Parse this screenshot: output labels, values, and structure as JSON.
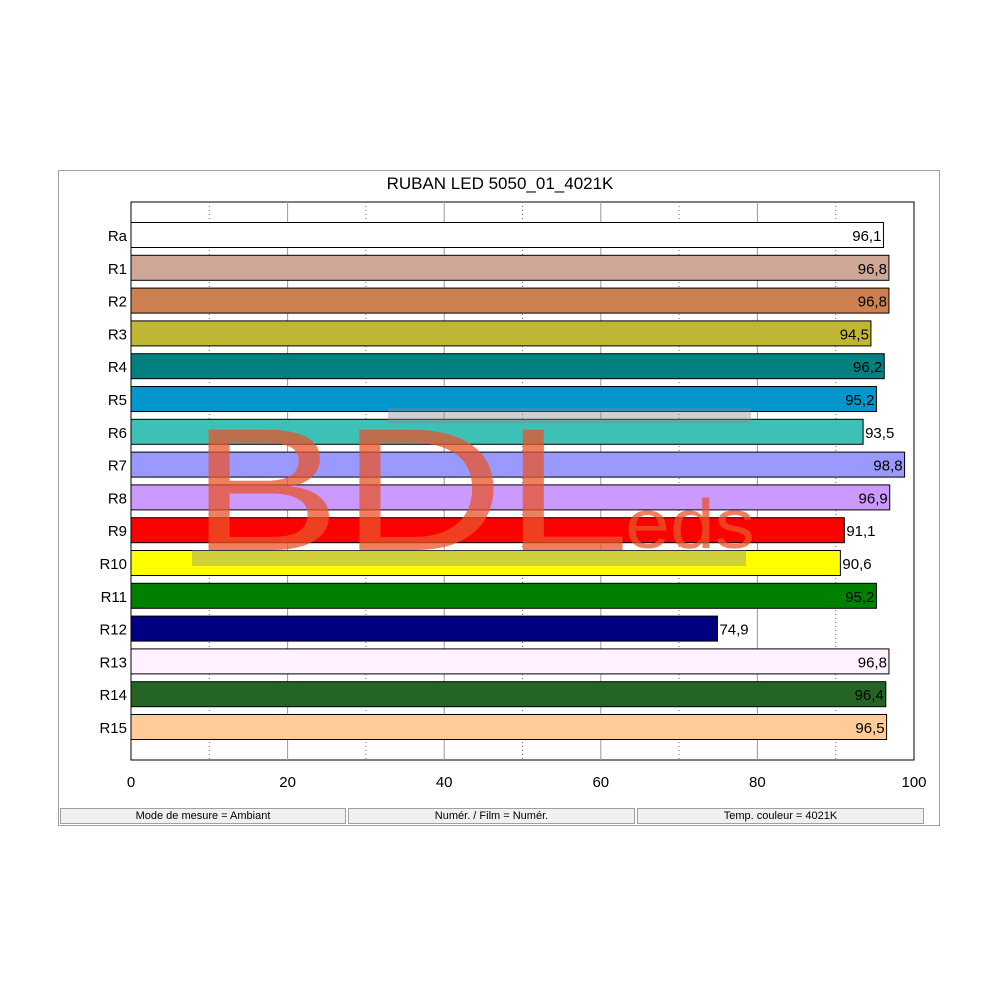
{
  "chart_data": {
    "type": "bar",
    "orientation": "horizontal",
    "title": "RUBAN LED 5050_01_4021K",
    "categories": [
      "Ra",
      "R1",
      "R2",
      "R3",
      "R4",
      "R5",
      "R6",
      "R7",
      "R8",
      "R9",
      "R10",
      "R11",
      "R12",
      "R13",
      "R14",
      "R15"
    ],
    "values": [
      96.1,
      96.8,
      96.8,
      94.5,
      96.2,
      95.2,
      93.5,
      98.8,
      96.9,
      91.1,
      90.6,
      95.2,
      74.9,
      96.8,
      96.4,
      96.5
    ],
    "value_labels": [
      "96,1",
      "96,8",
      "96,8",
      "94,5",
      "96,2",
      "95,2",
      "93,5",
      "98,8",
      "96,9",
      "91,1",
      "90,6",
      "95,2",
      "74,9",
      "96,8",
      "96,4",
      "96,5"
    ],
    "colors": [
      "#ffffff",
      "#cfa796",
      "#cd8150",
      "#bfb733",
      "#028080",
      "#0296cc",
      "#3dc0b6",
      "#9a99ff",
      "#cc99ff",
      "#ff0000",
      "#ffff00",
      "#008000",
      "#000080",
      "#fff1fd",
      "#246424",
      "#ffcc99"
    ],
    "xlim": [
      0,
      100
    ],
    "x_ticks": [
      0,
      20,
      40,
      60,
      80,
      100
    ],
    "x_tick_labels": [
      "0",
      "20",
      "40",
      "60",
      "80",
      "100"
    ],
    "grid": "vertical dotted every 10, solid every 20",
    "xlabel": "",
    "ylabel": ""
  },
  "watermark": {
    "text_main": "BDL",
    "text_sub": "eds",
    "color": "#e8542a"
  },
  "status_bar": {
    "measure_mode": "Mode de mesure = Ambiant",
    "film_mode": "Numér. / Film = Numér.",
    "color_temp": "Temp. couleur = 4021K"
  }
}
